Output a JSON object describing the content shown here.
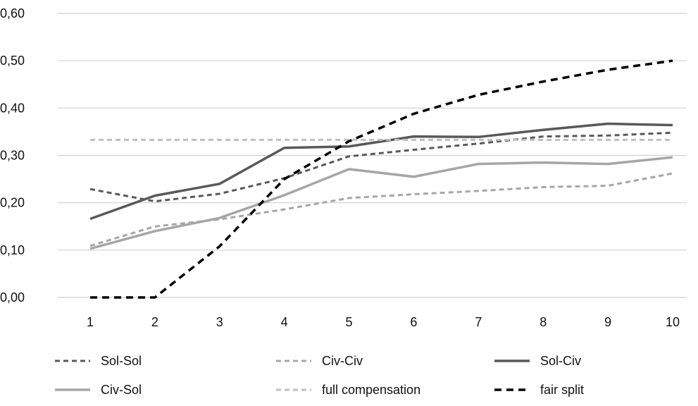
{
  "chart_data": {
    "type": "line",
    "title": "",
    "xlabel": "",
    "ylabel": "",
    "x": [
      1,
      2,
      3,
      4,
      5,
      6,
      7,
      8,
      9,
      10
    ],
    "x_tick_labels": [
      "1",
      "2",
      "3",
      "4",
      "5",
      "6",
      "7",
      "8",
      "9",
      "10"
    ],
    "ylim": [
      0,
      0.6
    ],
    "y_ticks": [
      0,
      0.1,
      0.2,
      0.3,
      0.4,
      0.5,
      0.6
    ],
    "y_tick_labels": [
      "0,00",
      "0,10",
      "0,20",
      "0,30",
      "0,40",
      "0,50",
      "0,60"
    ],
    "grid": "horizontal",
    "legend_position": "bottom",
    "series": [
      {
        "name": "Sol-Sol",
        "color": "#595959",
        "dash": "dashed",
        "values": [
          0.229,
          0.203,
          0.219,
          0.252,
          0.298,
          0.312,
          0.325,
          0.34,
          0.342,
          0.348
        ]
      },
      {
        "name": "Civ-Civ",
        "color": "#a6a6a6",
        "dash": "dashed",
        "values": [
          0.109,
          0.15,
          0.165,
          0.186,
          0.21,
          0.218,
          0.225,
          0.233,
          0.236,
          0.262
        ]
      },
      {
        "name": "Sol-Civ",
        "color": "#595959",
        "dash": "solid",
        "values": [
          0.166,
          0.215,
          0.24,
          0.316,
          0.319,
          0.34,
          0.339,
          0.354,
          0.367,
          0.364
        ]
      },
      {
        "name": "Civ-Sol",
        "color": "#a6a6a6",
        "dash": "solid",
        "values": [
          0.103,
          0.14,
          0.168,
          0.216,
          0.271,
          0.255,
          0.282,
          0.285,
          0.282,
          0.296
        ]
      },
      {
        "name": "full compensation",
        "color": "#bfbfbf",
        "dash": "dashed",
        "values": [
          0.333,
          0.333,
          0.333,
          0.333,
          0.333,
          0.333,
          0.333,
          0.333,
          0.333,
          0.333
        ]
      },
      {
        "name": "fair split",
        "color": "#000000",
        "dash": "dashed-bold",
        "values": [
          0.0,
          0.0,
          0.108,
          0.25,
          0.33,
          0.388,
          0.428,
          0.456,
          0.481,
          0.5
        ]
      }
    ]
  }
}
